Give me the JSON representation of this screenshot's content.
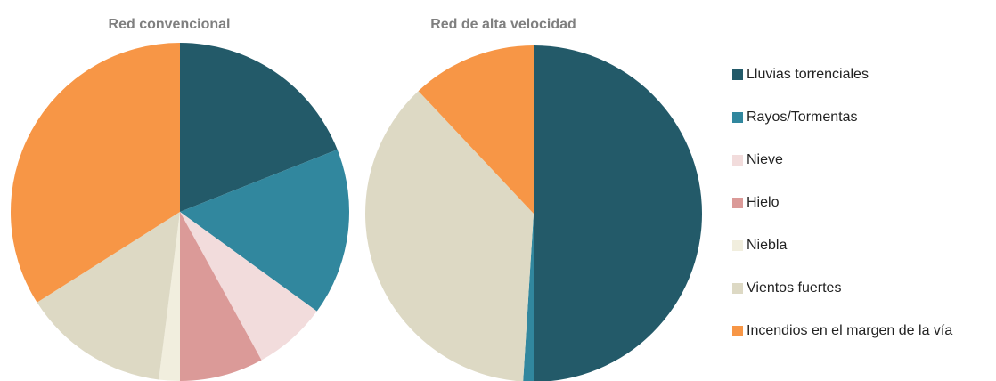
{
  "chart_data": [
    {
      "type": "pie",
      "title": "Red convencional",
      "categories": [
        "Lluvias torrenciales",
        "Rayos/Tormentas",
        "Nieve",
        "Hielo",
        "Niebla",
        "Vientos fuertes",
        "Incendios en el margen de la vía"
      ],
      "values": [
        19,
        16,
        7,
        8,
        2,
        14,
        34
      ],
      "colors": [
        "#235a69",
        "#31879e",
        "#f2dcdc",
        "#db9a98",
        "#f1eede",
        "#ddd9c4",
        "#f79646"
      ]
    },
    {
      "type": "pie",
      "title": "Red de alta velocidad",
      "categories": [
        "Lluvias torrenciales",
        "Rayos/Tormentas",
        "Nieve",
        "Hielo",
        "Niebla",
        "Vientos fuertes",
        "Incendios en el margen de la vía"
      ],
      "values": [
        50,
        1,
        0,
        0,
        0,
        37,
        12
      ],
      "colors": [
        "#235a69",
        "#31879e",
        "#f2dcdc",
        "#db9a98",
        "#f1eede",
        "#ddd9c4",
        "#f79646"
      ]
    }
  ]
}
